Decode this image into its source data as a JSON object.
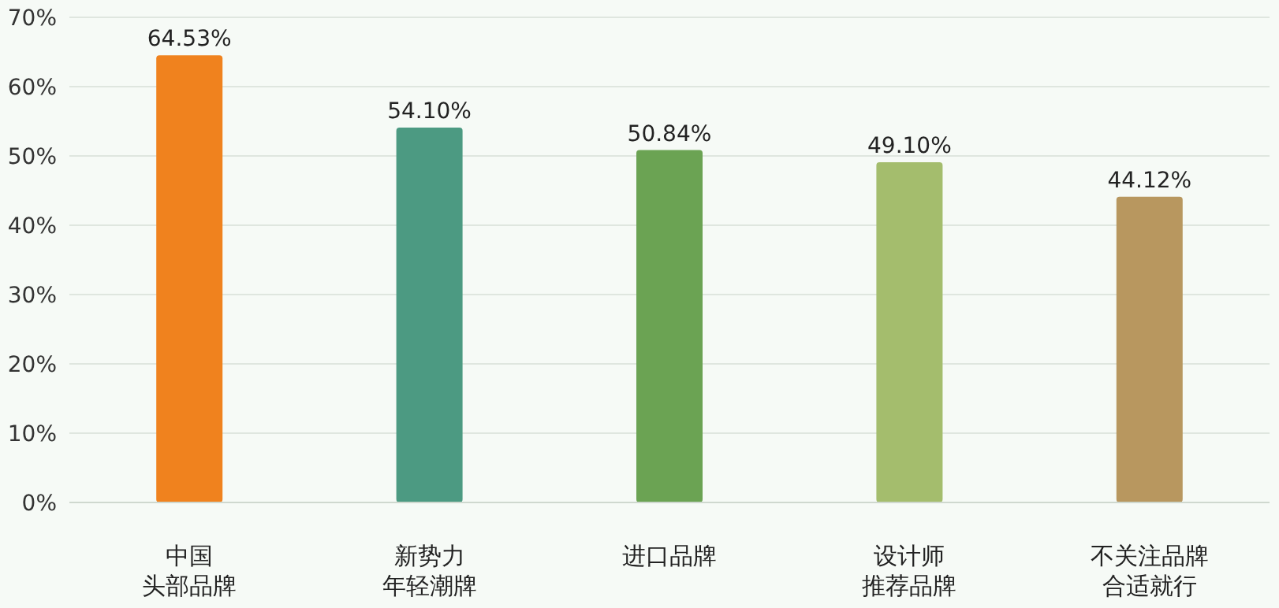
{
  "chart_data": {
    "type": "bar",
    "categories": [
      "中国头部品牌",
      "新势力年轻潮牌",
      "进口品牌",
      "设计师推荐品牌",
      "不关注品牌合适就行"
    ],
    "values": [
      64.53,
      54.1,
      50.84,
      49.1,
      44.12
    ],
    "value_labels": [
      "64.53%",
      "54.10%",
      "50.84%",
      "49.10%",
      "44.12%"
    ],
    "colors": [
      "#f0821e",
      "#4c9a82",
      "#6ba353",
      "#a4bd6d",
      "#b8975f"
    ],
    "ylim": [
      0,
      70
    ],
    "yticks": [
      {
        "value": 0,
        "label": "0%"
      },
      {
        "value": 10,
        "label": "10%"
      },
      {
        "value": 20,
        "label": "20%"
      },
      {
        "value": 30,
        "label": "30%"
      },
      {
        "value": 40,
        "label": "40%"
      },
      {
        "value": 50,
        "label": "50%"
      },
      {
        "value": 60,
        "label": "60%"
      },
      {
        "value": 70,
        "label": "70%"
      }
    ],
    "grid": "y"
  }
}
